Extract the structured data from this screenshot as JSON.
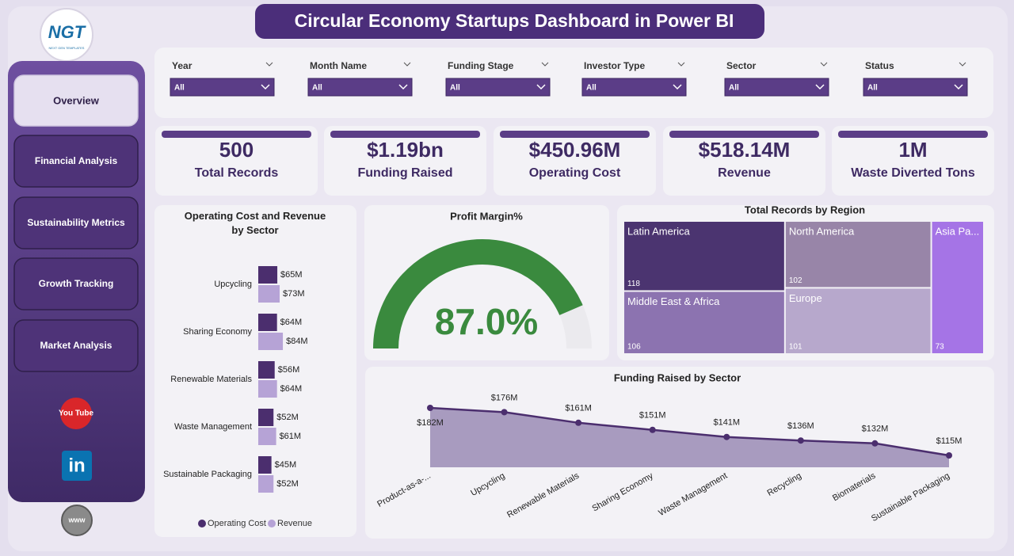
{
  "header": {
    "title": "Circular Economy Startups Dashboard in Power BI"
  },
  "logo": {
    "text": "NGT",
    "subtext": "NEXT GEN TEMPLATES"
  },
  "nav": [
    "Overview",
    "Financial Analysis",
    "Sustainability Metrics",
    "Growth Tracking",
    "Market Analysis"
  ],
  "social": {
    "youtube": "You Tube",
    "linkedin": "in",
    "web": "www"
  },
  "filters": [
    {
      "label": "Year",
      "value": "All"
    },
    {
      "label": "Month Name",
      "value": "All"
    },
    {
      "label": "Funding Stage",
      "value": "All"
    },
    {
      "label": "Investor Type",
      "value": "All"
    },
    {
      "label": "Sector",
      "value": "All"
    },
    {
      "label": "Status",
      "value": "All"
    }
  ],
  "kpis": [
    {
      "value": "500",
      "label": "Total Records"
    },
    {
      "value": "$1.19bn",
      "label": "Funding Raised"
    },
    {
      "value": "$450.96M",
      "label": "Operating Cost"
    },
    {
      "value": "$518.14M",
      "label": "Revenue"
    },
    {
      "value": "1M",
      "label": "Waste Diverted Tons"
    }
  ],
  "charts": [
    {
      "type": "hbar",
      "title": "Operating Cost and Revenue by Sector",
      "categories": [
        "Upcycling",
        "Sharing Economy",
        "Renewable Materials",
        "Waste Management",
        "Sustainable Packaging"
      ],
      "series": [
        {
          "name": "Operating Cost",
          "color": "#4b2e6e",
          "values": [
            65,
            64,
            56,
            52,
            45
          ],
          "value_labels": [
            "$65M",
            "$64M",
            "$56M",
            "$52M",
            "$45M"
          ]
        },
        {
          "name": "Revenue",
          "color": "#b6a3d6",
          "values": [
            73,
            84,
            64,
            61,
            52
          ],
          "value_labels": [
            "$73M",
            "$84M",
            "$64M",
            "$61M",
            "$52M"
          ]
        }
      ]
    },
    {
      "type": "gauge",
      "title": "Profit Margin%",
      "value": 87.0,
      "value_label": "87.0%",
      "color": "#3a8a3e"
    },
    {
      "type": "treemap",
      "title": "Total Records by Region",
      "categories": [
        "Latin America",
        "Middle East & Africa",
        "North America",
        "Europe",
        "Asia Pa..."
      ],
      "values": [
        118,
        106,
        102,
        101,
        73
      ],
      "colors": [
        "#4b3470",
        "#8c73b0",
        "#9885a8",
        "#b7a8cc",
        "#a574e6"
      ]
    },
    {
      "type": "area",
      "title": "Funding Raised by Sector",
      "color": "#4b2e6e",
      "fill": "#a89bbf",
      "categories": [
        "Product-as-a-...",
        "Upcycling",
        "Renewable Materials",
        "Sharing Economy",
        "Waste Management",
        "Recycling",
        "Biomaterials",
        "Sustainable Packaging"
      ],
      "values": [
        182,
        176,
        161,
        151,
        141,
        136,
        132,
        115
      ],
      "value_labels": [
        "$182M",
        "$176M",
        "$161M",
        "$151M",
        "$141M",
        "$136M",
        "$132M",
        "$115M"
      ]
    }
  ]
}
